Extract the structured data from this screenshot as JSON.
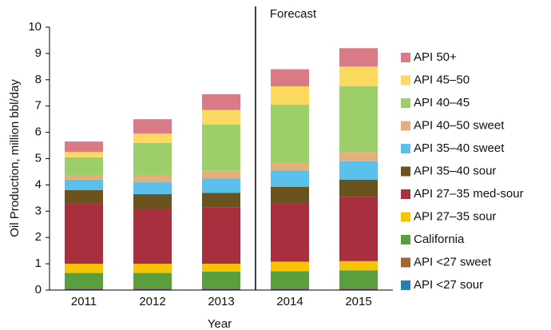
{
  "chart_data": {
    "type": "stacked_bar",
    "annotation": "Forecast",
    "xlabel": "Year",
    "ylabel": "Oil Production, million bbl/day",
    "categories": [
      "2011",
      "2012",
      "2013",
      "2014",
      "2015"
    ],
    "series": [
      {
        "name": "API <27 sour",
        "color": "#2a7fb0",
        "values": [
          0.03,
          0.03,
          0.03,
          0.03,
          0.03
        ]
      },
      {
        "name": "API <27 sweet",
        "color": "#a0662e",
        "values": [
          0.05,
          0.05,
          0.05,
          0.05,
          0.05
        ]
      },
      {
        "name": "California",
        "color": "#5a9e3e",
        "values": [
          0.57,
          0.57,
          0.62,
          0.64,
          0.67
        ]
      },
      {
        "name": "API 27–35 sour",
        "color": "#f8c300",
        "values": [
          0.35,
          0.35,
          0.3,
          0.36,
          0.35
        ]
      },
      {
        "name": "API 27–35 med-sour",
        "color": "#a8303e",
        "values": [
          2.3,
          2.1,
          2.15,
          2.22,
          2.45
        ]
      },
      {
        "name": "API 35–40 sour",
        "color": "#6b5320",
        "values": [
          0.5,
          0.55,
          0.55,
          0.63,
          0.65
        ]
      },
      {
        "name": "API 35–40 sweet",
        "color": "#5bc0eb",
        "values": [
          0.4,
          0.45,
          0.55,
          0.62,
          0.7
        ]
      },
      {
        "name": "API 40–50 sweet",
        "color": "#e2b07a",
        "values": [
          0.15,
          0.25,
          0.3,
          0.3,
          0.35
        ]
      },
      {
        "name": "API 40–45",
        "color": "#9ccf6a",
        "values": [
          0.7,
          1.25,
          1.75,
          2.2,
          2.5
        ]
      },
      {
        "name": "API 45–50",
        "color": "#fcd95f",
        "values": [
          0.2,
          0.35,
          0.55,
          0.7,
          0.75
        ]
      },
      {
        "name": "API 50+",
        "color": "#d97a86",
        "values": [
          0.4,
          0.55,
          0.6,
          0.65,
          0.7
        ]
      }
    ],
    "ylim": [
      0,
      10
    ],
    "yticks": [
      0,
      1,
      2,
      3,
      4,
      5,
      6,
      7,
      8,
      9,
      10
    ]
  }
}
